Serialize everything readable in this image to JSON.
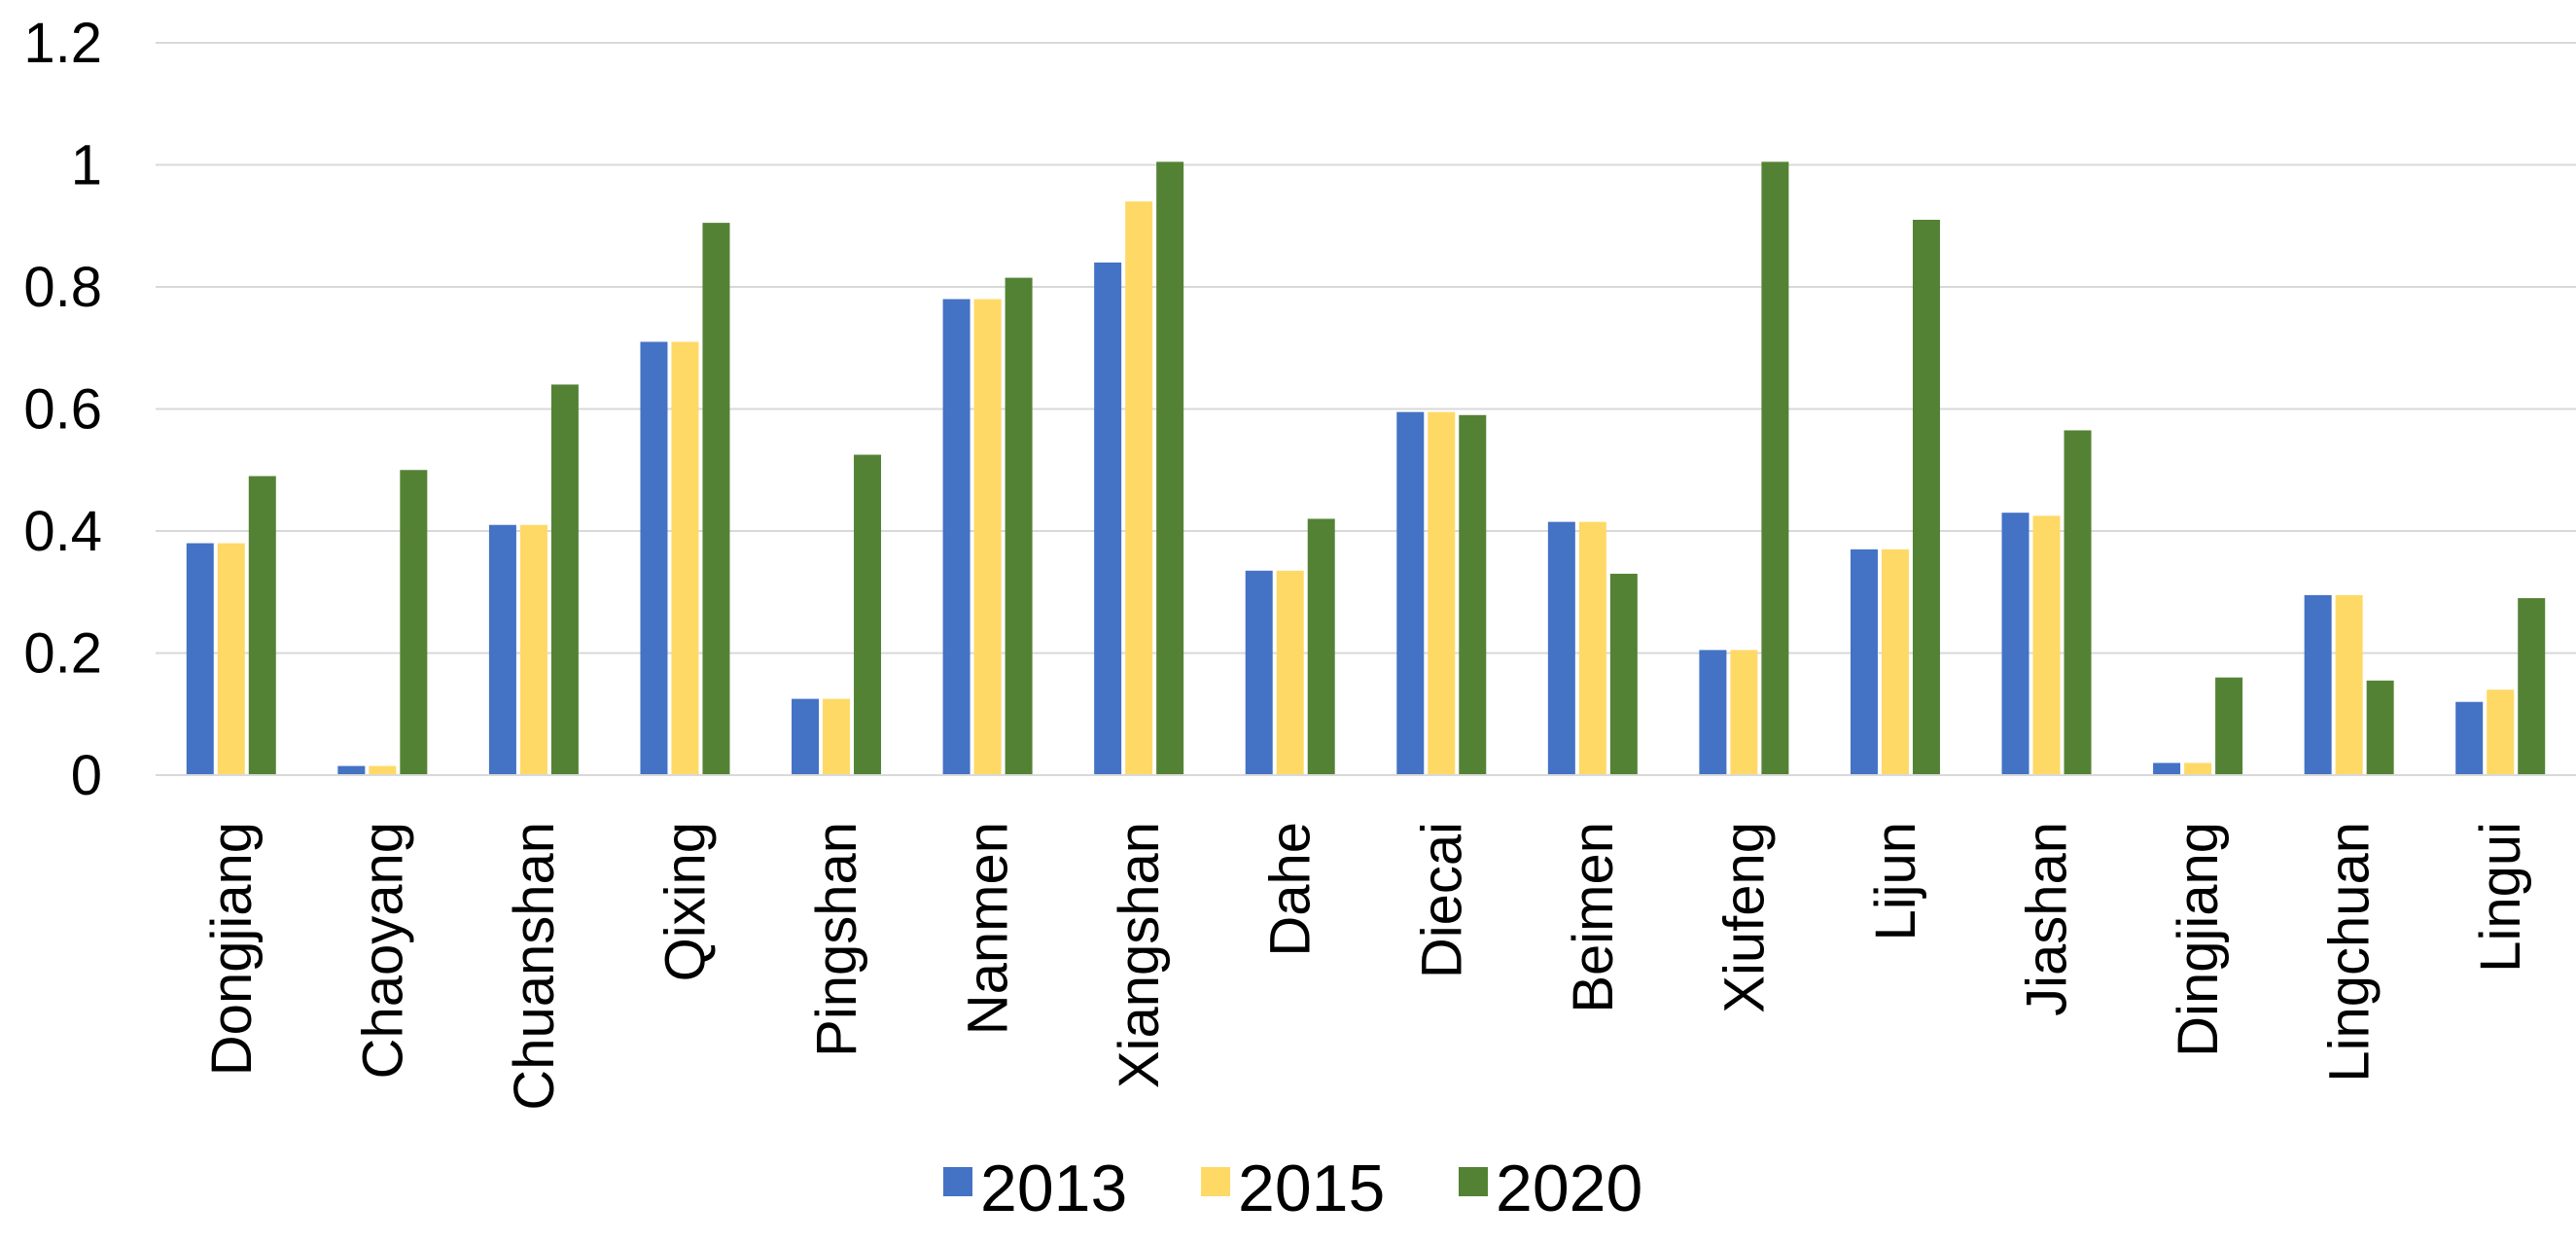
{
  "chart_data": {
    "type": "bar",
    "categories": [
      "Dongjiang",
      "Chaoyang",
      "Chuanshan",
      "Qixing",
      "Pingshan",
      "Nanmen",
      "Xiangshan",
      "Dahe",
      "Diecai",
      "Beimen",
      "Xiufeng",
      "Lijun",
      "Jiashan",
      "Dingjiang",
      "Lingchuan",
      "Lingui"
    ],
    "series": [
      {
        "name": "2013",
        "color": "#4472c4",
        "values": [
          0.38,
          0.015,
          0.41,
          0.71,
          0.125,
          0.78,
          0.84,
          0.335,
          0.595,
          0.415,
          0.205,
          0.37,
          0.43,
          0.02,
          0.295,
          0.12
        ]
      },
      {
        "name": "2015",
        "color": "#ffd966",
        "values": [
          0.38,
          0.015,
          0.41,
          0.71,
          0.125,
          0.78,
          0.94,
          0.335,
          0.595,
          0.415,
          0.205,
          0.37,
          0.425,
          0.02,
          0.295,
          0.14
        ]
      },
      {
        "name": "2020",
        "color": "#548235",
        "values": [
          0.49,
          0.5,
          0.64,
          0.905,
          0.525,
          0.815,
          1.005,
          0.42,
          0.59,
          0.33,
          1.005,
          0.91,
          0.565,
          0.16,
          0.155,
          0.29
        ]
      }
    ],
    "ylim": [
      0,
      1.2
    ],
    "yticks": [
      "0",
      "0.2",
      "0.4",
      "0.6",
      "0.8",
      "1",
      "1.2"
    ],
    "ytick_values": [
      0,
      0.2,
      0.4,
      0.6,
      0.8,
      1,
      1.2
    ],
    "title": "",
    "xlabel": "",
    "ylabel": "",
    "grid": true,
    "legend_position": "bottom"
  }
}
